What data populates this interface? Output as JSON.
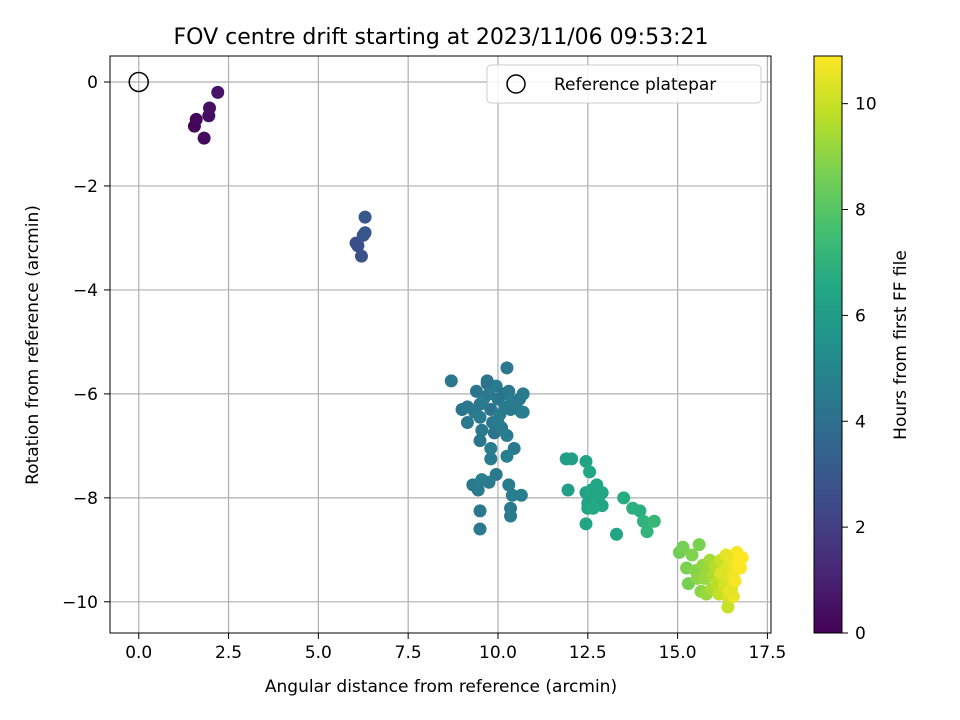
{
  "chart_data": {
    "type": "scatter",
    "title": "FOV centre drift starting at 2023/11/06 09:53:21",
    "xlabel": "Angular distance from reference (arcmin)",
    "ylabel": "Rotation from reference (arcmin)",
    "xlim": [
      -0.8,
      17.6
    ],
    "ylim": [
      -10.6,
      0.5
    ],
    "xticks": [
      0.0,
      2.5,
      5.0,
      7.5,
      10.0,
      12.5,
      15.0,
      17.5
    ],
    "xtick_labels": [
      "0.0",
      "2.5",
      "5.0",
      "7.5",
      "10.0",
      "12.5",
      "15.0",
      "17.5"
    ],
    "yticks": [
      0,
      -2,
      -4,
      -6,
      -8,
      -10
    ],
    "ytick_labels": [
      "0",
      "−2",
      "−4",
      "−6",
      "−8",
      "−10"
    ],
    "grid": true,
    "legend": {
      "position": "top-right",
      "entries": [
        "Reference platepar"
      ]
    },
    "reference_point": {
      "name": "Reference platepar",
      "x": 0.0,
      "y": 0.0
    },
    "colorbar": {
      "label": "Hours from first FF file",
      "colormap": "viridis",
      "range": [
        0,
        10.9
      ],
      "ticks": [
        0,
        2,
        4,
        6,
        8,
        10
      ],
      "tick_labels": [
        "0",
        "2",
        "4",
        "6",
        "8",
        "10"
      ]
    },
    "points": [
      [
        1.55,
        -0.85,
        0.1
      ],
      [
        1.6,
        -0.72,
        0.2
      ],
      [
        1.82,
        -1.08,
        0.3
      ],
      [
        1.95,
        -0.65,
        0.4
      ],
      [
        1.97,
        -0.5,
        0.5
      ],
      [
        2.2,
        -0.2,
        0.6
      ],
      [
        6.05,
        -3.1,
        2.5
      ],
      [
        6.1,
        -3.15,
        2.6
      ],
      [
        6.2,
        -3.35,
        2.7
      ],
      [
        6.25,
        -2.95,
        2.8
      ],
      [
        6.3,
        -2.9,
        2.9
      ],
      [
        6.3,
        -2.6,
        3.0
      ],
      [
        8.7,
        -5.75,
        4.3
      ],
      [
        9.0,
        -6.3,
        4.2
      ],
      [
        9.15,
        -6.25,
        4.3
      ],
      [
        9.15,
        -6.55,
        4.35
      ],
      [
        9.35,
        -6.35,
        4.4
      ],
      [
        9.4,
        -5.95,
        4.2
      ],
      [
        9.5,
        -6.2,
        4.3
      ],
      [
        9.5,
        -6.45,
        4.5
      ],
      [
        9.55,
        -6.7,
        4.4
      ],
      [
        9.5,
        -6.9,
        4.3
      ],
      [
        9.6,
        -6.1,
        4.5
      ],
      [
        9.7,
        -5.8,
        4.2
      ],
      [
        9.75,
        -6.0,
        4.3
      ],
      [
        9.8,
        -6.3,
        4.1
      ],
      [
        9.85,
        -6.55,
        4.4
      ],
      [
        9.9,
        -6.75,
        4.2
      ],
      [
        9.95,
        -5.85,
        4.5
      ],
      [
        10.0,
        -6.1,
        4.3
      ],
      [
        10.05,
        -6.4,
        4.6
      ],
      [
        10.1,
        -6.65,
        4.4
      ],
      [
        10.15,
        -6.0,
        4.2
      ],
      [
        10.2,
        -6.25,
        4.5
      ],
      [
        10.3,
        -5.95,
        4.3
      ],
      [
        10.35,
        -6.3,
        4.4
      ],
      [
        10.4,
        -6.15,
        4.6
      ],
      [
        10.5,
        -6.2,
        4.5
      ],
      [
        10.6,
        -6.1,
        4.3
      ],
      [
        10.65,
        -6.35,
        4.4
      ],
      [
        10.7,
        -6.0,
        4.5
      ],
      [
        10.7,
        -6.35,
        4.6
      ],
      [
        10.25,
        -5.5,
        4.3
      ],
      [
        9.7,
        -5.75,
        4.2
      ],
      [
        10.0,
        -6.55,
        4.5
      ],
      [
        10.25,
        -6.8,
        4.6
      ],
      [
        10.45,
        -7.05,
        4.4
      ],
      [
        9.8,
        -7.05,
        4.6
      ],
      [
        9.8,
        -7.25,
        4.5
      ],
      [
        10.25,
        -7.2,
        4.7
      ],
      [
        9.95,
        -7.55,
        4.3
      ],
      [
        9.3,
        -7.75,
        4.4
      ],
      [
        9.45,
        -7.85,
        4.5
      ],
      [
        9.55,
        -7.65,
        4.6
      ],
      [
        9.5,
        -8.25,
        4.3
      ],
      [
        9.5,
        -8.6,
        4.4
      ],
      [
        9.75,
        -7.7,
        4.5
      ],
      [
        10.3,
        -7.75,
        4.5
      ],
      [
        10.4,
        -7.95,
        4.6
      ],
      [
        10.35,
        -8.2,
        4.4
      ],
      [
        10.35,
        -8.35,
        4.5
      ],
      [
        10.65,
        -7.95,
        4.6
      ],
      [
        11.9,
        -7.25,
        6.0
      ],
      [
        12.05,
        -7.25,
        6.1
      ],
      [
        11.95,
        -7.85,
        6.0
      ],
      [
        12.45,
        -7.3,
        6.3
      ],
      [
        12.55,
        -7.5,
        6.5
      ],
      [
        12.45,
        -7.9,
        6.2
      ],
      [
        12.5,
        -8.1,
        6.3
      ],
      [
        12.5,
        -8.2,
        6.3
      ],
      [
        12.45,
        -8.5,
        6.4
      ],
      [
        12.6,
        -7.85,
        6.5
      ],
      [
        12.7,
        -8.0,
        6.4
      ],
      [
        12.8,
        -8.0,
        6.6
      ],
      [
        12.9,
        -7.9,
        6.5
      ],
      [
        12.9,
        -8.15,
        6.4
      ],
      [
        12.65,
        -8.2,
        6.6
      ],
      [
        12.75,
        -7.75,
        6.5
      ],
      [
        13.3,
        -8.7,
        6.4
      ],
      [
        13.5,
        -8.0,
        6.7
      ],
      [
        13.75,
        -8.2,
        6.9
      ],
      [
        13.95,
        -8.25,
        6.8
      ],
      [
        14.05,
        -8.45,
        7.0
      ],
      [
        14.15,
        -8.65,
        7.1
      ],
      [
        14.35,
        -8.45,
        7.2
      ],
      [
        15.05,
        -9.05,
        8.5
      ],
      [
        15.15,
        -8.95,
        8.6
      ],
      [
        15.25,
        -9.35,
        8.7
      ],
      [
        15.3,
        -9.65,
        8.6
      ],
      [
        15.4,
        -9.1,
        8.8
      ],
      [
        15.5,
        -9.4,
        8.9
      ],
      [
        15.55,
        -9.55,
        9.0
      ],
      [
        15.6,
        -8.9,
        8.7
      ],
      [
        15.65,
        -9.8,
        9.0
      ],
      [
        15.7,
        -9.3,
        9.1
      ],
      [
        15.75,
        -9.55,
        9.2
      ],
      [
        15.8,
        -9.85,
        9.2
      ],
      [
        15.85,
        -9.4,
        9.3
      ],
      [
        15.9,
        -9.2,
        9.4
      ],
      [
        15.95,
        -9.75,
        9.5
      ],
      [
        16.0,
        -9.5,
        9.6
      ],
      [
        16.05,
        -9.3,
        9.7
      ],
      [
        16.1,
        -9.65,
        9.8
      ],
      [
        16.15,
        -9.85,
        9.9
      ],
      [
        16.2,
        -9.2,
        10.0
      ],
      [
        16.25,
        -9.5,
        10.1
      ],
      [
        16.3,
        -9.7,
        10.2
      ],
      [
        16.35,
        -9.35,
        10.3
      ],
      [
        16.4,
        -9.9,
        10.2
      ],
      [
        16.4,
        -10.1,
        10.0
      ],
      [
        16.45,
        -9.55,
        10.4
      ],
      [
        16.5,
        -9.2,
        10.5
      ],
      [
        16.5,
        -9.75,
        10.4
      ],
      [
        16.55,
        -9.45,
        10.6
      ],
      [
        16.6,
        -9.3,
        10.7
      ],
      [
        16.65,
        -9.05,
        10.8
      ],
      [
        16.7,
        -9.25,
        10.85
      ],
      [
        16.75,
        -9.35,
        10.9
      ],
      [
        16.8,
        -9.15,
        10.9
      ],
      [
        16.55,
        -9.9,
        10.6
      ],
      [
        16.35,
        -9.1,
        10.5
      ],
      [
        16.6,
        -9.6,
        10.8
      ],
      [
        16.2,
        -9.45,
        10.3
      ],
      [
        16.45,
        -9.8,
        10.5
      ]
    ]
  }
}
